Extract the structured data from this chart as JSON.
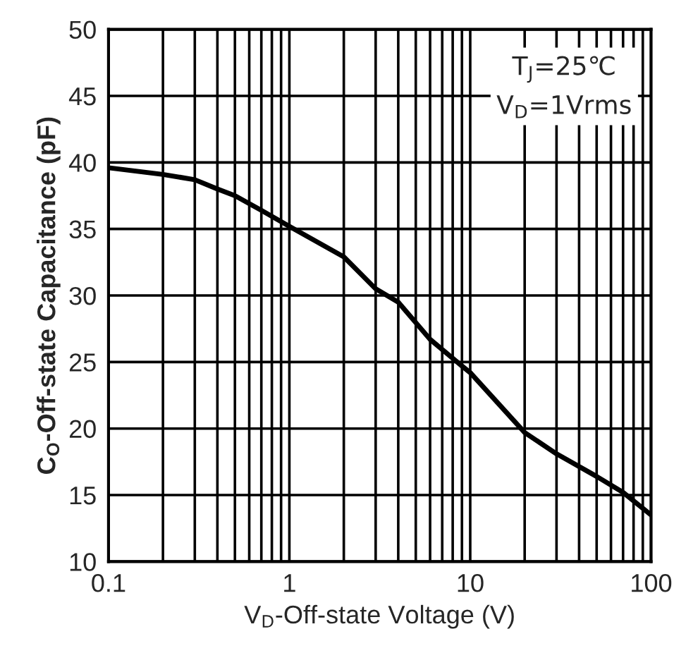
{
  "chart_data": {
    "type": "line",
    "xlabel": "V$_{D}$-Off-state Voltage (V)",
    "ylabel": "C$_{O}$-Off-state Capacitance (pF)",
    "annotations": [
      "T$_{J}$=25℃",
      "V$_{D}$=1Vrms"
    ],
    "x": [
      0.1,
      0.2,
      0.3,
      0.4,
      0.5,
      0.7,
      1,
      2,
      3,
      4,
      6,
      9,
      10,
      20,
      30,
      50,
      70,
      100
    ],
    "series": [
      {
        "color": "#000000",
        "values": [
          39.6,
          39.1,
          38.7,
          38.0,
          37.5,
          36.4,
          35.2,
          32.9,
          30.5,
          29.5,
          26.7,
          24.7,
          24.2,
          19.7,
          18.1,
          16.4,
          15.2,
          13.5
        ]
      }
    ],
    "log": "x",
    "xlim": [
      0.1,
      100
    ],
    "xticks": [
      0.1,
      {
        "value": 0.2,
        "label": null
      },
      {
        "value": 0.3,
        "label": null
      },
      {
        "value": 0.4,
        "label": null
      },
      {
        "value": 0.5,
        "label": null
      },
      {
        "value": 0.6,
        "label": null
      },
      {
        "value": 0.7,
        "label": null
      },
      {
        "value": 0.8,
        "label": null
      },
      {
        "value": 0.9,
        "label": null
      },
      1,
      {
        "value": 2,
        "label": null
      },
      {
        "value": 3,
        "label": null
      },
      {
        "value": 4,
        "label": null
      },
      {
        "value": 5,
        "label": null
      },
      {
        "value": 6,
        "label": null
      },
      {
        "value": 7,
        "label": null
      },
      {
        "value": 8,
        "label": null
      },
      {
        "value": 9,
        "label": null
      },
      10,
      {
        "value": 20,
        "label": null
      },
      {
        "value": 30,
        "label": null
      },
      {
        "value": 40,
        "label": null
      },
      {
        "value": 50,
        "label": null
      },
      {
        "value": 60,
        "label": null
      },
      {
        "value": 70,
        "label": null
      },
      {
        "value": 80,
        "label": null
      },
      {
        "value": 90,
        "label": null
      },
      100
    ],
    "ylim": [
      10,
      50
    ],
    "yticks": [
      10,
      15,
      20,
      25,
      30,
      35,
      40,
      45,
      50
    ],
    "grid": true,
    "line_style": "solid",
    "marker": "none"
  }
}
